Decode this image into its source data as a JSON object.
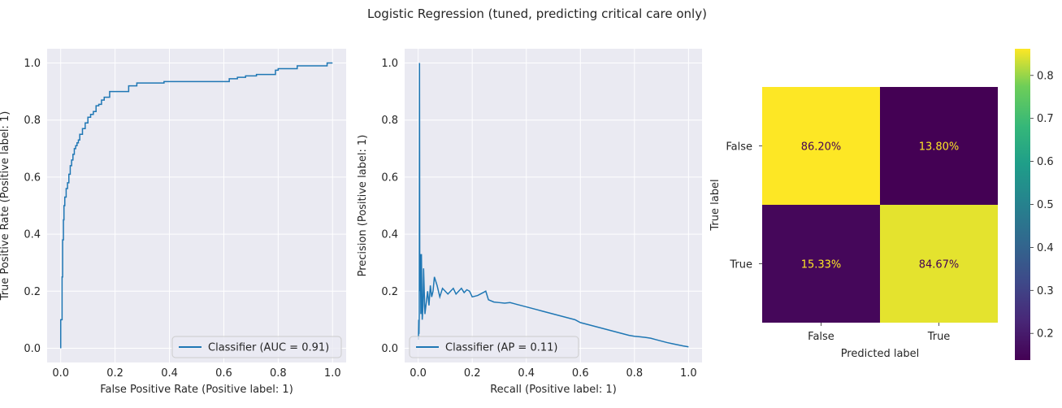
{
  "suptitle": "Logistic Regression (tuned, predicting critical care only)",
  "colors": {
    "plot_bg": "#eaeaf2",
    "grid": "#ffffff",
    "line": "#1f77b4",
    "viridis_low": "#440154",
    "viridis_high": "#fde725",
    "annot_on_dark": "#fde725",
    "annot_on_light": "#440154"
  },
  "chart_data": [
    {
      "type": "line",
      "name": "roc",
      "xlabel": "False Positive Rate (Positive label: 1)",
      "ylabel": "True Positive Rate (Positive label: 1)",
      "xlim": [
        -0.05,
        1.05
      ],
      "ylim": [
        -0.05,
        1.05
      ],
      "xticks": [
        "0.0",
        "0.2",
        "0.4",
        "0.6",
        "0.8",
        "1.0"
      ],
      "yticks": [
        "0.0",
        "0.2",
        "0.4",
        "0.6",
        "0.8",
        "1.0"
      ],
      "grid": true,
      "legend": "lower right",
      "series": [
        {
          "name": "Classifier (AUC = 0.91)",
          "x": [
            0.0,
            0.0,
            0.005,
            0.005,
            0.007,
            0.007,
            0.01,
            0.01,
            0.012,
            0.012,
            0.015,
            0.015,
            0.02,
            0.02,
            0.025,
            0.025,
            0.03,
            0.03,
            0.035,
            0.035,
            0.04,
            0.04,
            0.045,
            0.045,
            0.05,
            0.05,
            0.055,
            0.055,
            0.06,
            0.06,
            0.065,
            0.065,
            0.07,
            0.07,
            0.08,
            0.08,
            0.09,
            0.09,
            0.1,
            0.1,
            0.11,
            0.11,
            0.12,
            0.12,
            0.13,
            0.13,
            0.14,
            0.14,
            0.15,
            0.15,
            0.16,
            0.16,
            0.18,
            0.18,
            0.25,
            0.25,
            0.28,
            0.28,
            0.38,
            0.38,
            0.62,
            0.62,
            0.65,
            0.65,
            0.68,
            0.68,
            0.72,
            0.72,
            0.79,
            0.79,
            0.8,
            0.8,
            0.87,
            0.87,
            0.98,
            0.98,
            1.0
          ],
          "y": [
            0.0,
            0.1,
            0.1,
            0.25,
            0.25,
            0.38,
            0.38,
            0.45,
            0.45,
            0.5,
            0.5,
            0.53,
            0.53,
            0.56,
            0.56,
            0.58,
            0.58,
            0.61,
            0.61,
            0.64,
            0.64,
            0.66,
            0.66,
            0.68,
            0.68,
            0.7,
            0.7,
            0.71,
            0.71,
            0.72,
            0.72,
            0.73,
            0.73,
            0.75,
            0.75,
            0.77,
            0.77,
            0.79,
            0.79,
            0.81,
            0.81,
            0.82,
            0.82,
            0.83,
            0.83,
            0.85,
            0.85,
            0.855,
            0.855,
            0.87,
            0.87,
            0.88,
            0.88,
            0.9,
            0.9,
            0.92,
            0.92,
            0.93,
            0.93,
            0.935,
            0.935,
            0.945,
            0.945,
            0.95,
            0.95,
            0.955,
            0.955,
            0.96,
            0.96,
            0.975,
            0.975,
            0.98,
            0.98,
            0.99,
            0.99,
            1.0,
            1.0
          ]
        }
      ]
    },
    {
      "type": "line",
      "name": "precision-recall",
      "xlabel": "Recall (Positive label: 1)",
      "ylabel": "Precision (Positive label: 1)",
      "xlim": [
        -0.05,
        1.05
      ],
      "ylim": [
        -0.05,
        1.05
      ],
      "xticks": [
        "0.0",
        "0.2",
        "0.4",
        "0.6",
        "0.8",
        "1.0"
      ],
      "yticks": [
        "0.0",
        "0.2",
        "0.4",
        "0.6",
        "0.8",
        "1.0"
      ],
      "grid": true,
      "legend": "lower left",
      "series": [
        {
          "name": "Classifier (AP = 0.11)",
          "x": [
            1.0,
            0.98,
            0.96,
            0.94,
            0.92,
            0.9,
            0.88,
            0.86,
            0.84,
            0.82,
            0.8,
            0.78,
            0.76,
            0.74,
            0.72,
            0.7,
            0.68,
            0.66,
            0.64,
            0.62,
            0.6,
            0.58,
            0.56,
            0.54,
            0.52,
            0.5,
            0.48,
            0.46,
            0.44,
            0.42,
            0.4,
            0.38,
            0.36,
            0.34,
            0.32,
            0.3,
            0.28,
            0.26,
            0.25,
            0.24,
            0.23,
            0.22,
            0.2,
            0.19,
            0.18,
            0.17,
            0.16,
            0.15,
            0.14,
            0.13,
            0.12,
            0.11,
            0.1,
            0.09,
            0.08,
            0.07,
            0.06,
            0.055,
            0.05,
            0.045,
            0.04,
            0.035,
            0.03,
            0.025,
            0.02,
            0.018,
            0.015,
            0.012,
            0.01,
            0.008,
            0.006,
            0.005,
            0.004,
            0.003,
            0.002,
            0.001
          ],
          "y": [
            0.005,
            0.008,
            0.012,
            0.016,
            0.02,
            0.025,
            0.03,
            0.035,
            0.038,
            0.04,
            0.042,
            0.045,
            0.05,
            0.055,
            0.06,
            0.065,
            0.07,
            0.075,
            0.08,
            0.085,
            0.09,
            0.1,
            0.105,
            0.11,
            0.115,
            0.12,
            0.125,
            0.13,
            0.135,
            0.14,
            0.145,
            0.15,
            0.155,
            0.16,
            0.158,
            0.16,
            0.162,
            0.17,
            0.2,
            0.195,
            0.19,
            0.185,
            0.18,
            0.2,
            0.205,
            0.195,
            0.21,
            0.2,
            0.19,
            0.21,
            0.2,
            0.19,
            0.2,
            0.21,
            0.18,
            0.22,
            0.25,
            0.2,
            0.18,
            0.22,
            0.15,
            0.2,
            0.16,
            0.12,
            0.28,
            0.15,
            0.1,
            0.33,
            0.12,
            0.33,
            0.2,
            1.0,
            0.12,
            0.05,
            0.1,
            0.03
          ]
        }
      ]
    },
    {
      "type": "heatmap",
      "name": "confusion-matrix",
      "xlabel": "Predicted label",
      "ylabel": "True label",
      "x_categories": [
        "False",
        "True"
      ],
      "y_categories": [
        "False",
        "True"
      ],
      "values": [
        [
          0.862,
          0.138
        ],
        [
          0.1533,
          0.8467
        ]
      ],
      "labels": [
        [
          "86.20%",
          "13.80%"
        ],
        [
          "15.33%",
          "84.67%"
        ]
      ],
      "colorbar": {
        "min": 0.138,
        "max": 0.862,
        "ticks": [
          0.2,
          0.3,
          0.4,
          0.5,
          0.6,
          0.7,
          0.8
        ],
        "tick_labels": [
          "0.2",
          "0.3",
          "0.4",
          "0.5",
          "0.6",
          "0.7",
          "0.8"
        ]
      }
    }
  ]
}
